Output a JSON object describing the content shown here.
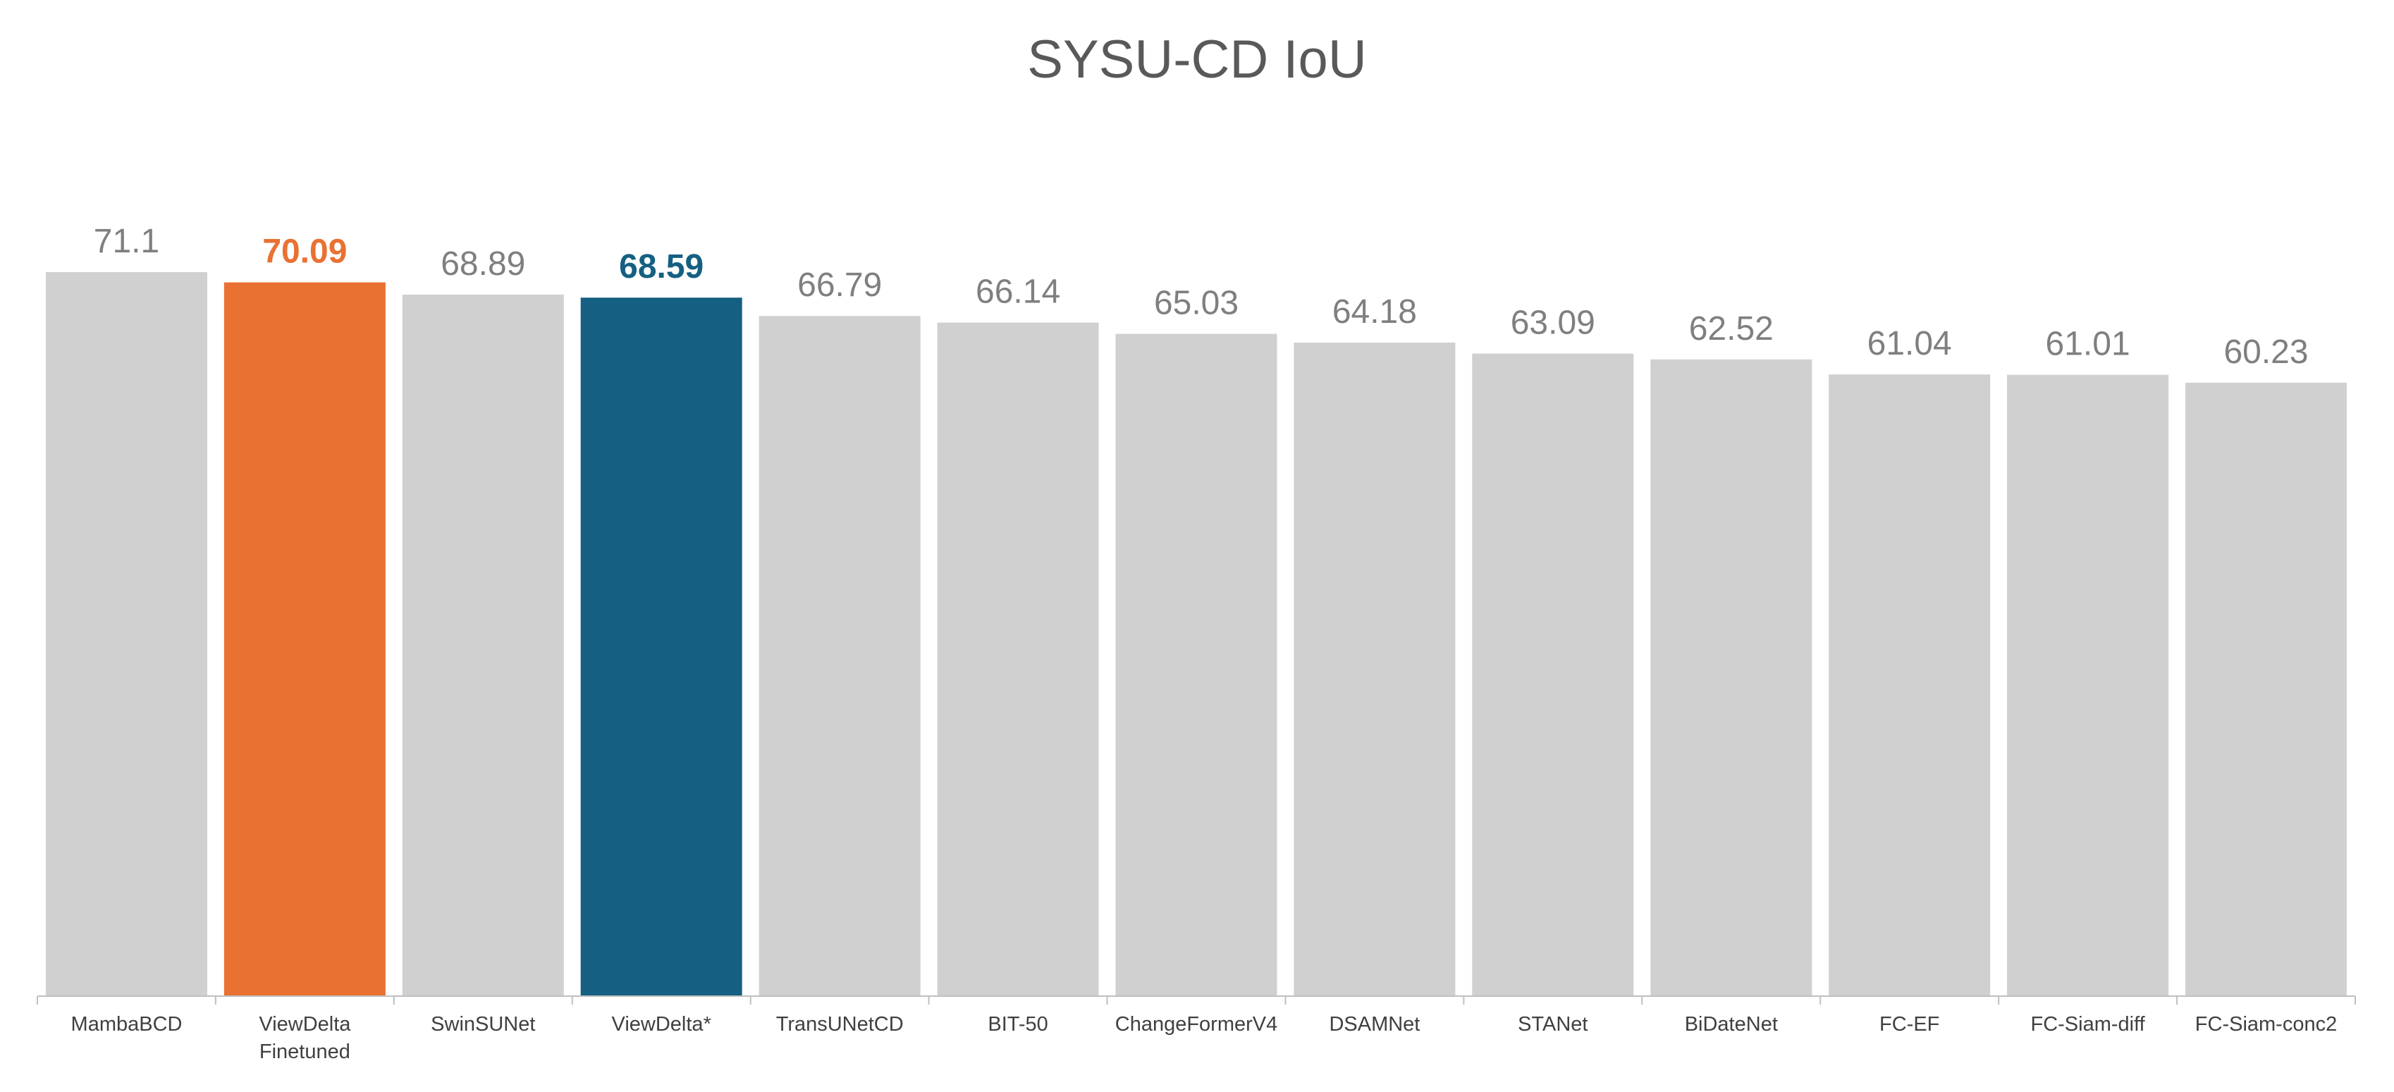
{
  "chart_data": {
    "type": "bar",
    "title": "SYSU-CD IoU",
    "xlabel": "",
    "ylabel": "",
    "ylim": [
      0,
      71.1
    ],
    "grid": false,
    "legend": "none",
    "data_labels": true,
    "categories": [
      [
        "MambaBCD"
      ],
      [
        "ViewDelta",
        "Finetuned"
      ],
      [
        "SwinSUNet"
      ],
      [
        "ViewDelta*"
      ],
      [
        "TransUNetCD"
      ],
      [
        "BIT-50"
      ],
      [
        "ChangeFormerV4"
      ],
      [
        "DSAMNet"
      ],
      [
        "STANet"
      ],
      [
        "BiDateNet"
      ],
      [
        "FC-EF"
      ],
      [
        "FC-Siam-diff"
      ],
      [
        "FC-Siam-conc2"
      ]
    ],
    "value_labels": [
      "71.1",
      "70.09",
      "68.89",
      "68.59",
      "66.79",
      "66.14",
      "65.03",
      "64.18",
      "63.09",
      "62.52",
      "61.04",
      "61.01",
      "60.23"
    ],
    "series": [
      {
        "values": [
          71.1,
          70.09,
          68.89,
          68.59,
          66.79,
          66.14,
          65.03,
          64.18,
          63.09,
          62.52,
          61.04,
          61.01,
          60.23
        ]
      }
    ],
    "colors": {
      "default_bar": "#d0d0d0",
      "highlight_1": "#e97132",
      "highlight_2": "#156082",
      "default_label": "#7f7f7f",
      "axis_line": "#bfbfbf",
      "tick_text": "#404040",
      "title_text": "#595959"
    },
    "highlights": [
      {
        "index": 1,
        "color": "#e97132"
      },
      {
        "index": 3,
        "color": "#156082"
      }
    ]
  }
}
